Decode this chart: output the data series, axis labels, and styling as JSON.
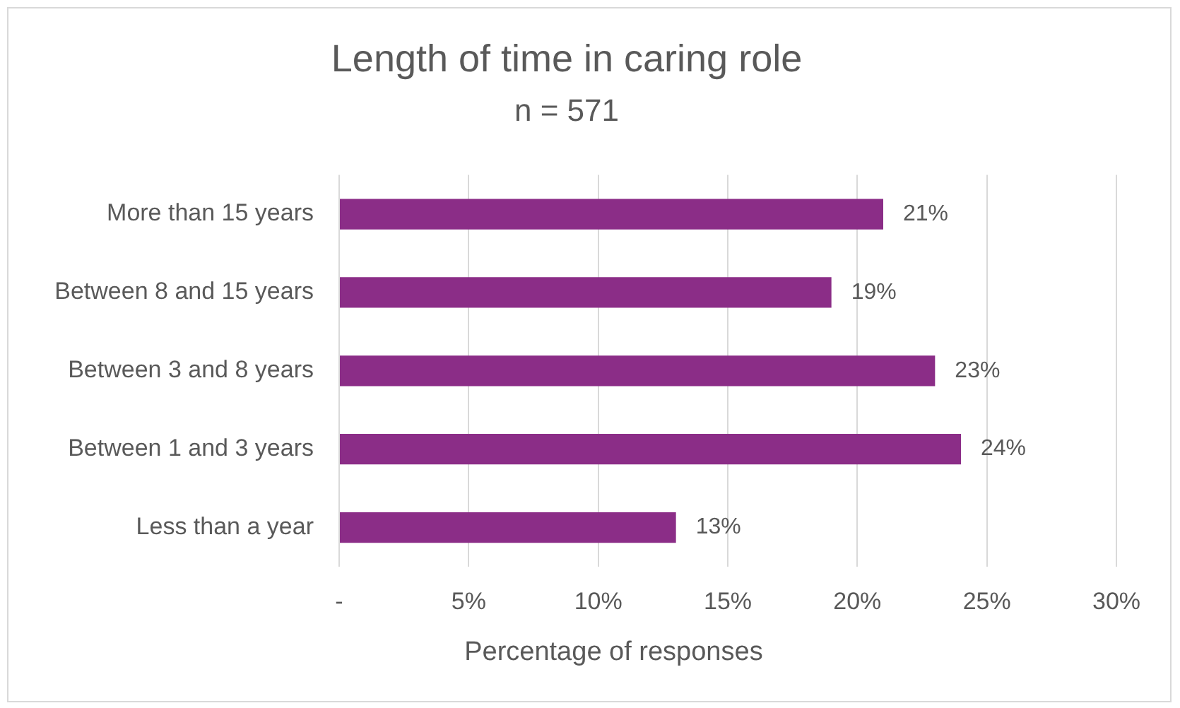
{
  "chart_data": {
    "type": "bar",
    "orientation": "horizontal",
    "title": "Length of time in caring role",
    "subtitle": "n = 571",
    "xlabel": "Percentage of responses",
    "categories": [
      "More than 15 years",
      "Between 8 and 15 years",
      "Between 3 and 8 years",
      "Between 1 and 3 years",
      "Less than a year"
    ],
    "values": [
      21,
      19,
      23,
      24,
      13
    ],
    "color": "#8b2d87",
    "value_labels": [
      "21%",
      "19%",
      "23%",
      "24%",
      "13%"
    ],
    "xlim": [
      0,
      30
    ],
    "xticks": [
      {
        "value": 0,
        "label": "-"
      },
      {
        "value": 5,
        "label": "5%"
      },
      {
        "value": 10,
        "label": "10%"
      },
      {
        "value": 15,
        "label": "15%"
      },
      {
        "value": 20,
        "label": "20%"
      },
      {
        "value": 25,
        "label": "25%"
      },
      {
        "value": 30,
        "label": "30%"
      }
    ],
    "grid": "x"
  }
}
